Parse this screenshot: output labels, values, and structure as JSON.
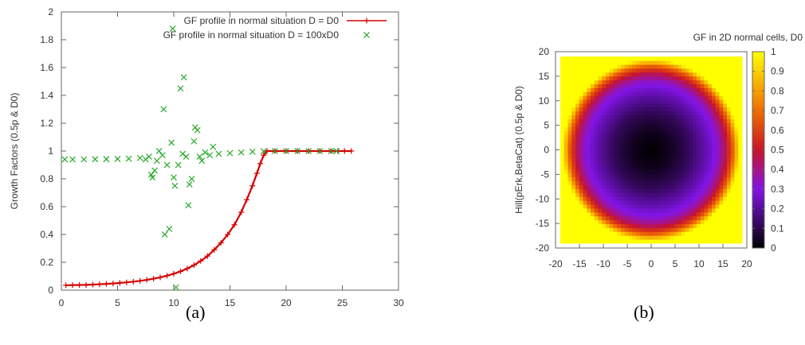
{
  "captions": {
    "a": "(a)",
    "b": "(b)"
  },
  "chart_data": [
    {
      "type": "scatter",
      "title": "",
      "xlabel": "",
      "ylabel": "Growth Factors (0.5p & D0)",
      "xlim": [
        0,
        30
      ],
      "ylim": [
        0,
        2
      ],
      "xticks": [
        0,
        5,
        10,
        15,
        20,
        25,
        30
      ],
      "yticks": [
        0,
        0.2,
        0.4,
        0.6,
        0.8,
        1,
        1.2,
        1.4,
        1.6,
        1.8,
        2
      ],
      "grid": false,
      "legend_position": "top-right",
      "series": [
        {
          "name": "GF profile in normal situation D = D0",
          "color": "#d40000",
          "marker": "plus",
          "style": "linespoints",
          "points": [
            [
              0.4,
              0.035
            ],
            [
              1.0,
              0.036
            ],
            [
              1.6,
              0.037
            ],
            [
              2.2,
              0.038
            ],
            [
              2.8,
              0.04
            ],
            [
              3.4,
              0.042
            ],
            [
              4.0,
              0.045
            ],
            [
              4.6,
              0.048
            ],
            [
              5.2,
              0.052
            ],
            [
              5.8,
              0.056
            ],
            [
              6.4,
              0.061
            ],
            [
              7.0,
              0.067
            ],
            [
              7.6,
              0.074
            ],
            [
              8.2,
              0.082
            ],
            [
              8.8,
              0.092
            ],
            [
              9.4,
              0.104
            ],
            [
              10.0,
              0.118
            ],
            [
              10.6,
              0.135
            ],
            [
              11.2,
              0.155
            ],
            [
              11.8,
              0.18
            ],
            [
              12.4,
              0.21
            ],
            [
              13.0,
              0.245
            ],
            [
              13.6,
              0.29
            ],
            [
              14.2,
              0.34
            ],
            [
              14.8,
              0.4
            ],
            [
              15.4,
              0.47
            ],
            [
              16.0,
              0.56
            ],
            [
              16.5,
              0.65
            ],
            [
              17.0,
              0.75
            ],
            [
              17.4,
              0.84
            ],
            [
              17.7,
              0.91
            ],
            [
              18.0,
              0.97
            ],
            [
              18.3,
              1.0
            ],
            [
              19.0,
              1.0
            ],
            [
              20.0,
              1.0
            ],
            [
              21.0,
              1.0
            ],
            [
              22.0,
              1.0
            ],
            [
              23.0,
              1.0
            ],
            [
              24.0,
              1.0
            ],
            [
              24.6,
              1.0
            ],
            [
              25.2,
              1.0
            ],
            [
              25.8,
              1.0
            ]
          ]
        },
        {
          "name": "GF profile in normal situation D = 100xD0",
          "color": "#1fa51f",
          "marker": "cross",
          "style": "points",
          "points": [
            [
              0.3,
              0.94
            ],
            [
              1.0,
              0.94
            ],
            [
              2.0,
              0.94
            ],
            [
              3.0,
              0.941
            ],
            [
              4.0,
              0.942
            ],
            [
              5.0,
              0.943
            ],
            [
              6.0,
              0.945
            ],
            [
              7.0,
              0.95
            ],
            [
              7.5,
              0.94
            ],
            [
              7.8,
              0.96
            ],
            [
              8.0,
              0.83
            ],
            [
              8.1,
              0.81
            ],
            [
              8.3,
              0.86
            ],
            [
              8.5,
              0.93
            ],
            [
              8.7,
              1.0
            ],
            [
              9.0,
              0.97
            ],
            [
              9.1,
              1.3
            ],
            [
              9.2,
              0.4
            ],
            [
              9.4,
              0.9
            ],
            [
              9.6,
              0.44
            ],
            [
              9.8,
              1.06
            ],
            [
              9.9,
              1.88
            ],
            [
              10.0,
              0.81
            ],
            [
              10.1,
              0.75
            ],
            [
              10.2,
              0.02
            ],
            [
              10.4,
              0.9
            ],
            [
              10.6,
              1.45
            ],
            [
              10.8,
              0.98
            ],
            [
              10.9,
              1.53
            ],
            [
              11.1,
              0.96
            ],
            [
              11.3,
              0.61
            ],
            [
              11.4,
              0.76
            ],
            [
              11.6,
              0.8
            ],
            [
              11.8,
              1.07
            ],
            [
              11.9,
              1.17
            ],
            [
              12.1,
              1.15
            ],
            [
              12.3,
              0.96
            ],
            [
              12.5,
              0.93
            ],
            [
              12.8,
              0.99
            ],
            [
              13.2,
              0.97
            ],
            [
              13.5,
              1.03
            ],
            [
              14.0,
              0.98
            ],
            [
              15.0,
              0.985
            ],
            [
              16.0,
              0.99
            ],
            [
              17.0,
              0.995
            ],
            [
              18.0,
              0.998
            ],
            [
              19.0,
              1.0
            ],
            [
              20.0,
              1.0
            ],
            [
              21.0,
              1.0
            ],
            [
              22.0,
              1.0
            ],
            [
              23.0,
              1.0
            ],
            [
              24.0,
              1.0
            ],
            [
              24.5,
              1.0
            ]
          ]
        }
      ]
    },
    {
      "type": "heatmap",
      "title": "GF in 2D normal cells, D0",
      "xlabel": "",
      "ylabel": "Hill(pErk,BetaCat) (0.5p & D0)",
      "xlim": [
        -20,
        20
      ],
      "ylim": [
        -20,
        20
      ],
      "xticks": [
        -20,
        -15,
        -10,
        -5,
        0,
        5,
        10,
        15,
        20
      ],
      "yticks": [
        -20,
        -15,
        -10,
        -5,
        0,
        5,
        10,
        15,
        20
      ],
      "data_extent": [
        -19,
        19
      ],
      "colorbar": {
        "min": 0,
        "max": 1,
        "ticks": [
          0,
          0.1,
          0.2,
          0.3,
          0.4,
          0.5,
          0.6,
          0.7,
          0.8,
          0.9,
          1
        ]
      },
      "pattern": "radial: ~0 at center, ~0.3 at r=14, rises to 1 by r=18.5, 1 outside",
      "radial_profile": {
        "r": [
          0,
          4,
          8,
          12,
          14,
          15.5,
          17,
          18.5,
          27
        ],
        "value": [
          0.0,
          0.04,
          0.12,
          0.25,
          0.33,
          0.45,
          0.65,
          1.0,
          1.0
        ]
      }
    }
  ]
}
